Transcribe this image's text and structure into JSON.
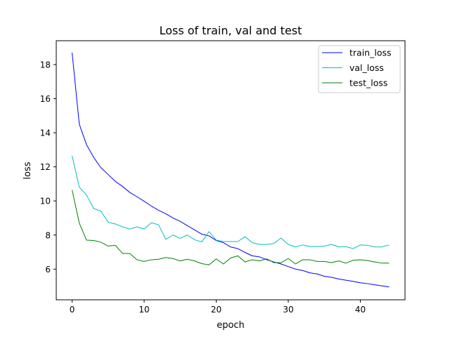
{
  "chart_data": {
    "type": "line",
    "title": "Loss of train, val and test",
    "xlabel": "epoch",
    "ylabel": "loss",
    "xlim": [
      -2.2,
      46.2
    ],
    "ylim": [
      4.2,
      19.4
    ],
    "xticks": [
      0,
      10,
      20,
      30,
      40
    ],
    "yticks": [
      6,
      8,
      10,
      12,
      14,
      16,
      18
    ],
    "grid": false,
    "legend_position": "top-right",
    "x": [
      0,
      1,
      2,
      3,
      4,
      5,
      6,
      7,
      8,
      9,
      10,
      11,
      12,
      13,
      14,
      15,
      16,
      17,
      18,
      19,
      20,
      21,
      22,
      23,
      24,
      25,
      26,
      27,
      28,
      29,
      30,
      31,
      32,
      33,
      34,
      35,
      36,
      37,
      38,
      39,
      40,
      41,
      42,
      43,
      44
    ],
    "series": [
      {
        "name": "train_loss",
        "color": "#0000ff",
        "values": [
          18.7,
          14.5,
          13.3,
          12.55,
          11.95,
          11.55,
          11.15,
          10.85,
          10.5,
          10.25,
          9.98,
          9.7,
          9.45,
          9.25,
          9.0,
          8.8,
          8.55,
          8.3,
          8.05,
          7.95,
          7.68,
          7.55,
          7.3,
          7.2,
          6.98,
          6.78,
          6.72,
          6.55,
          6.42,
          6.3,
          6.15,
          6.0,
          5.92,
          5.78,
          5.72,
          5.58,
          5.52,
          5.42,
          5.35,
          5.28,
          5.2,
          5.15,
          5.08,
          5.02,
          4.95
        ]
      },
      {
        "name": "val_loss",
        "color": "#00bfbf",
        "values": [
          12.65,
          10.8,
          10.35,
          9.55,
          9.4,
          8.75,
          8.65,
          8.48,
          8.35,
          8.48,
          8.35,
          8.72,
          8.6,
          7.75,
          8.0,
          7.8,
          8.0,
          7.72,
          7.6,
          8.2,
          7.7,
          7.62,
          7.62,
          7.62,
          7.9,
          7.55,
          7.45,
          7.45,
          7.5,
          7.82,
          7.45,
          7.3,
          7.42,
          7.32,
          7.32,
          7.35,
          7.45,
          7.3,
          7.32,
          7.2,
          7.42,
          7.4,
          7.3,
          7.3,
          7.42
        ]
      },
      {
        "name": "test_loss",
        "color": "#008000",
        "values": [
          10.65,
          8.7,
          7.7,
          7.68,
          7.58,
          7.35,
          7.4,
          6.92,
          6.92,
          6.55,
          6.45,
          6.55,
          6.58,
          6.68,
          6.62,
          6.48,
          6.58,
          6.48,
          6.32,
          6.25,
          6.6,
          6.3,
          6.65,
          6.78,
          6.42,
          6.55,
          6.48,
          6.6,
          6.38,
          6.38,
          6.62,
          6.3,
          6.55,
          6.55,
          6.45,
          6.45,
          6.38,
          6.48,
          6.35,
          6.52,
          6.55,
          6.5,
          6.42,
          6.35,
          6.35
        ]
      }
    ]
  }
}
